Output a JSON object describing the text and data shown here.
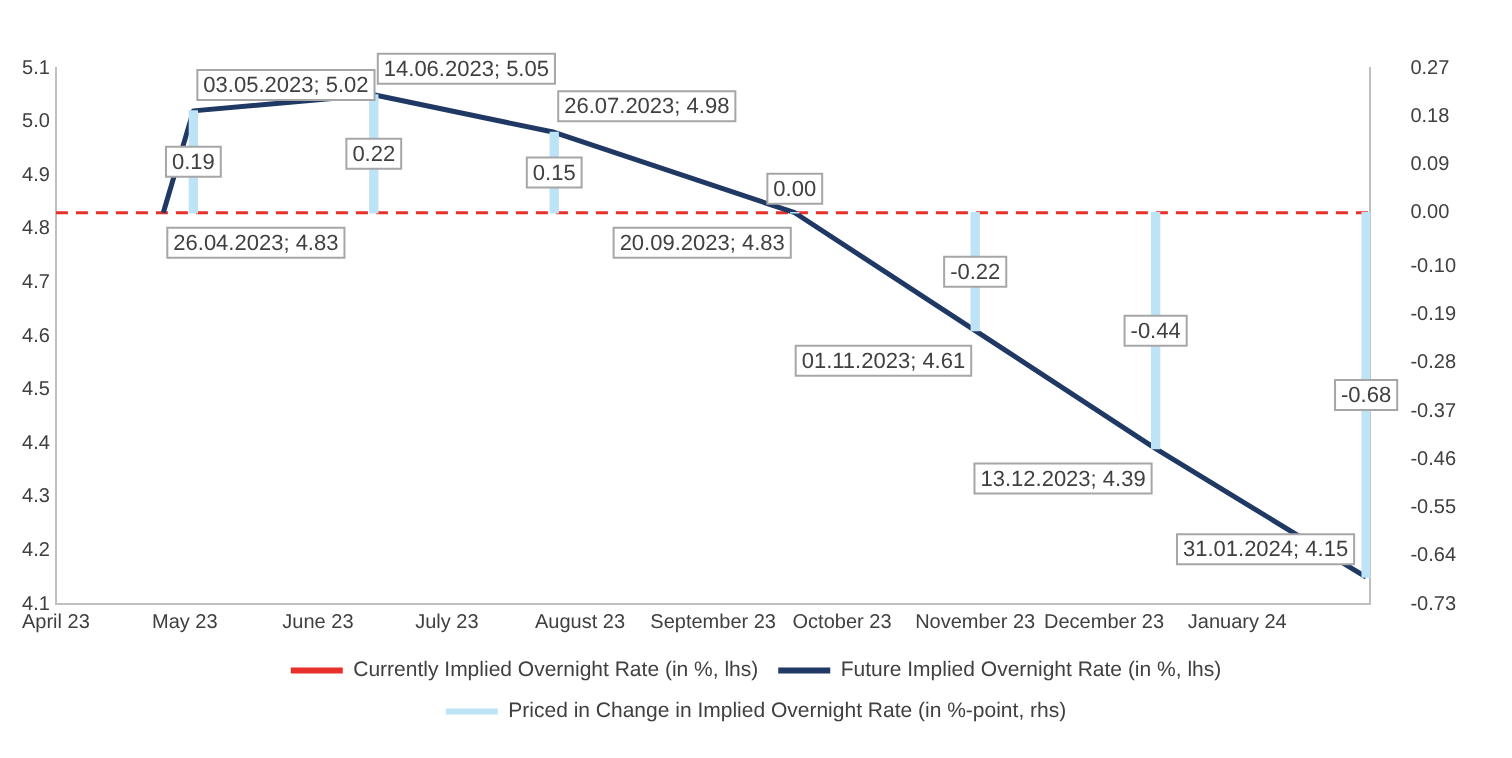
{
  "chart_data": {
    "type": "line",
    "xlim": [
      "2023-04-01",
      "2024-02-01"
    ],
    "xticks": [
      {
        "value": "2023-04-01",
        "label": "April 23"
      },
      {
        "value": "2023-05-01",
        "label": "May 23"
      },
      {
        "value": "2023-06-01",
        "label": "June 23"
      },
      {
        "value": "2023-07-01",
        "label": "July 23"
      },
      {
        "value": "2023-08-01",
        "label": "August 23"
      },
      {
        "value": "2023-09-01",
        "label": "September 23"
      },
      {
        "value": "2023-10-01",
        "label": "October 23"
      },
      {
        "value": "2023-11-01",
        "label": "November 23"
      },
      {
        "value": "2023-12-01",
        "label": "December 23"
      },
      {
        "value": "2024-01-01",
        "label": "January 24"
      }
    ],
    "ylim": [
      4.1,
      5.1
    ],
    "yticks": [
      4.1,
      4.2,
      4.3,
      4.4,
      4.5,
      4.6,
      4.7,
      4.8,
      4.9,
      {
        "value": 5,
        "label": "5.0"
      },
      5.1
    ],
    "y2lim": [
      -0.73,
      0.27
    ],
    "y2ticks": [
      -0.73,
      -0.64,
      -0.55,
      -0.46,
      -0.37,
      -0.28,
      -0.19,
      {
        "value": -0.1,
        "label": "-0.10"
      },
      {
        "value": 0,
        "label": "0.00"
      },
      0.09,
      0.18,
      0.27
    ],
    "ref_lines": [
      {
        "axis": "y",
        "value": 4.83,
        "label": "Currently Implied Overnight Rate (in %, lhs)",
        "color": "#e8302a",
        "line_style": "dashed"
      }
    ],
    "series": [
      {
        "name": "Future Implied Overnight Rate (in %, lhs)",
        "color": "#1f3864",
        "line_style": "solid",
        "marker": "none",
        "x": [
          "2023-04-26",
          "2023-05-03",
          "2023-06-14",
          "2023-07-26",
          "2023-09-20",
          "2023-11-01",
          "2023-12-13",
          "2024-01-31"
        ],
        "values": [
          4.83,
          5.02,
          5.05,
          4.98,
          4.83,
          4.61,
          4.39,
          4.15
        ],
        "value_labels": [
          "26.04.2023; 4.83",
          "03.05.2023; 5.02",
          "14.06.2023; 5.05",
          "26.07.2023; 4.98",
          "20.09.2023; 4.83",
          "01.11.2023; 4.61",
          "13.12.2023; 4.39",
          "31.01.2024; 4.15"
        ]
      },
      {
        "name": "Priced in Change in Implied Overnight Rate (in %-point, rhs)",
        "type": "bar",
        "axis": "y2",
        "color": "#bde3f7",
        "x": [
          "2023-05-03",
          "2023-06-14",
          "2023-07-26",
          "2023-09-20",
          "2023-11-01",
          "2023-12-13",
          "2024-01-31"
        ],
        "values": [
          0.19,
          0.22,
          0.15,
          0.0,
          -0.22,
          -0.44,
          -0.68
        ],
        "value_labels": [
          "0.19",
          "0.22",
          "0.15",
          "0.00",
          "-0.22",
          "-0.44",
          "-0.68"
        ]
      }
    ],
    "grid": false,
    "legend": "bottom"
  }
}
